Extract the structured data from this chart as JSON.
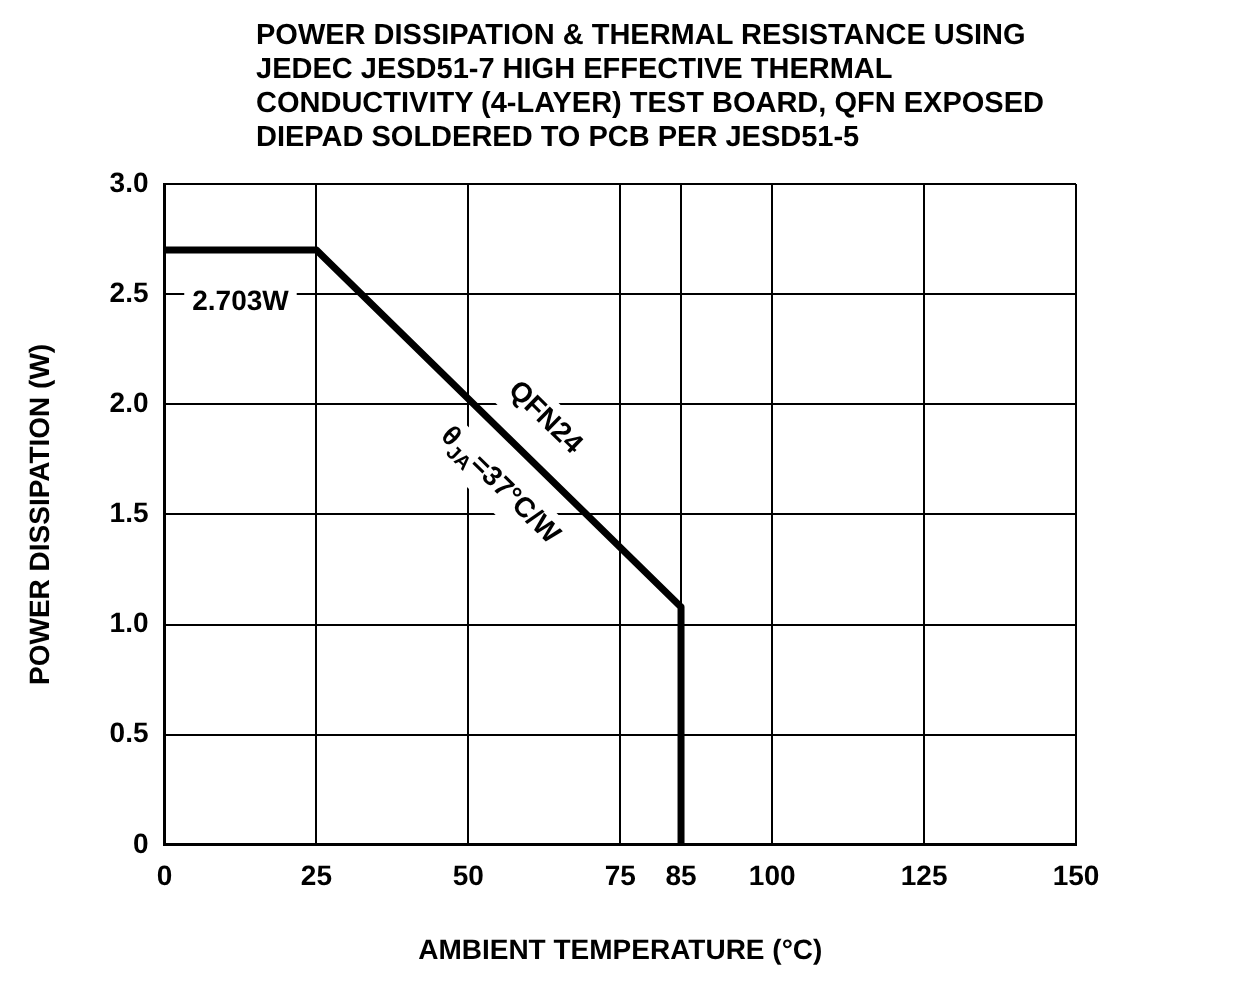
{
  "chart_data": {
    "type": "line",
    "title": "POWER DISSIPATION & THERMAL RESISTANCE USING JEDEC JESD51-7 HIGH EFFECTIVE THERMAL CONDUCTIVITY (4-LAYER) TEST BOARD, QFN EXPOSED DIEPAD SOLDERED TO PCB PER JESD51-5",
    "xlabel": "AMBIENT TEMPERATURE (°C)",
    "ylabel": "POWER DISSIPATION (W)",
    "x": [
      0,
      25,
      85,
      85
    ],
    "series": [
      {
        "color": "#000000",
        "values": [
          2.7,
          2.7,
          1.08,
          0
        ]
      }
    ],
    "xlim": [
      0,
      150
    ],
    "xticks": [
      0,
      25,
      50,
      75,
      85,
      100,
      125,
      150
    ],
    "ylim": [
      0,
      3.0
    ],
    "yticks": [
      {
        "value": 0,
        "label": "0"
      },
      {
        "value": 0.5,
        "label": "0.5"
      },
      {
        "value": 1.0,
        "label": "1.0"
      },
      {
        "value": 1.5,
        "label": "1.5"
      },
      {
        "value": 2.0,
        "label": "2.0"
      },
      {
        "value": 2.5,
        "label": "2.5"
      },
      {
        "value": 3.0,
        "label": "3.0"
      }
    ],
    "grid": true,
    "legend": false,
    "marker": "none",
    "line_style": "solid",
    "annotations": [
      "2.703W",
      "QFN24",
      "θ$_{JA}$=37°C/W"
    ]
  }
}
